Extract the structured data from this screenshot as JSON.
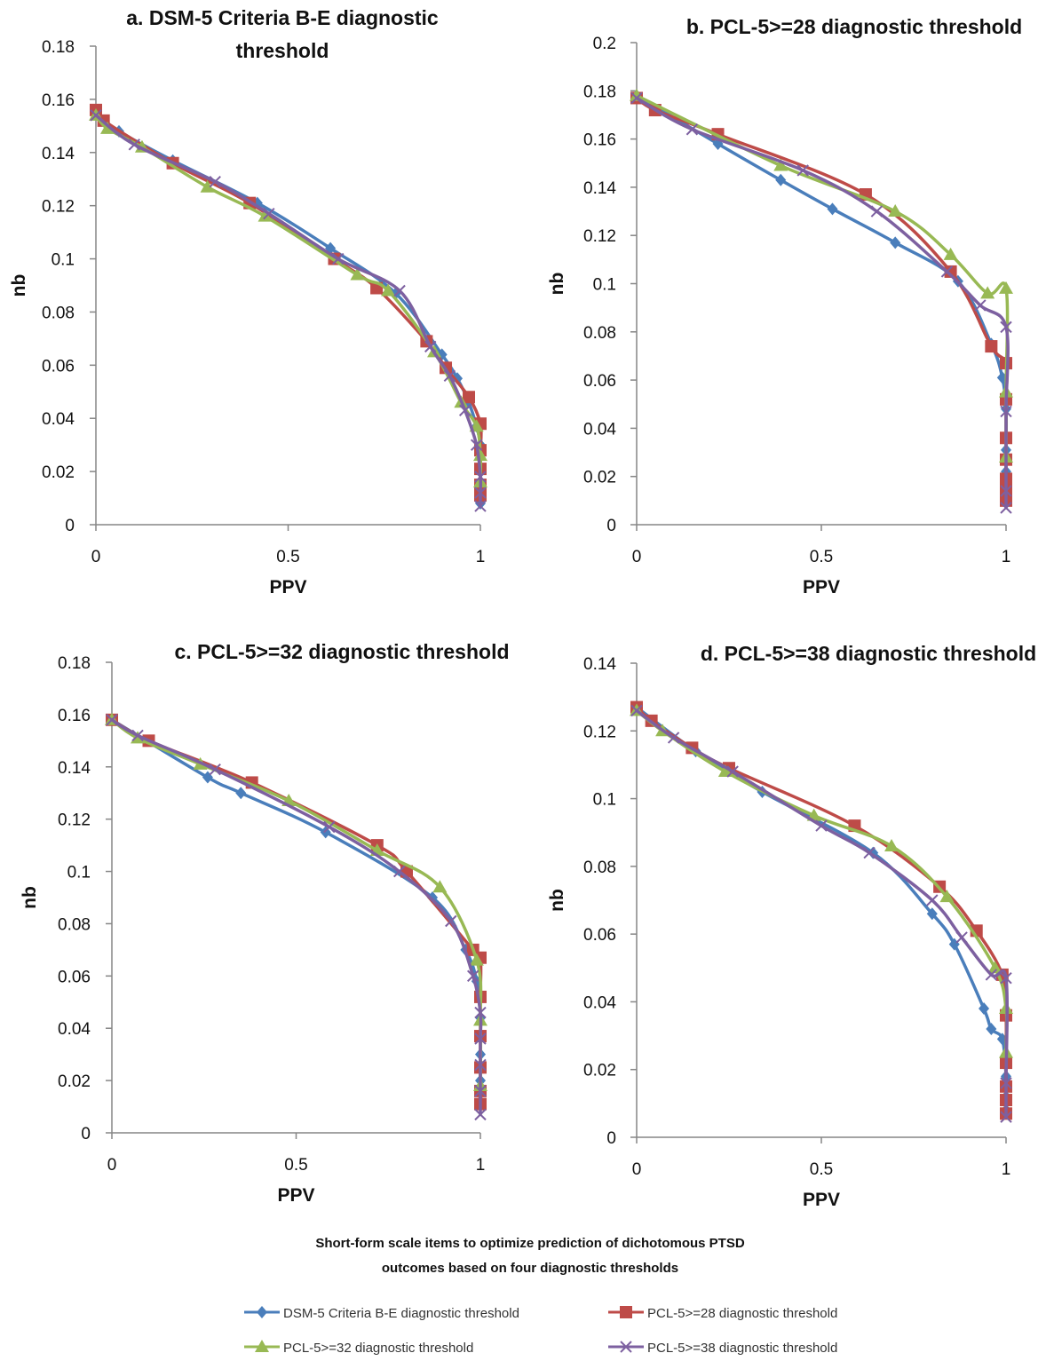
{
  "caption": {
    "line1": "Short-form scale items to optimize prediction of dichotomous PTSD",
    "line2": "outcomes based on four diagnostic thresholds"
  },
  "colors": {
    "series": [
      "#4a7ebb",
      "#be4b48",
      "#98b954",
      "#7d60a0"
    ],
    "axis": "#868686",
    "text": "#111111"
  },
  "legend": {
    "items": [
      "DSM-5 Criteria B-E diagnostic threshold",
      "PCL-5>=28 diagnostic threshold",
      "PCL-5>=32 diagnostic threshold",
      "PCL-5>=38 diagnostic threshold"
    ],
    "placement": "bottom"
  },
  "chart_data": [
    {
      "type": "line",
      "title_lines": [
        "a. DSM-5 Criteria B-E diagnostic",
        "threshold"
      ],
      "xlabel": "PPV",
      "ylabel": "nb",
      "xlim": [
        0,
        1
      ],
      "ylim": [
        0,
        0.18
      ],
      "xticks": [
        "0",
        "0.5",
        "1"
      ],
      "yticks": [
        "0",
        "0.02",
        "0.04",
        "0.06",
        "0.08",
        "0.1",
        "0.12",
        "0.14",
        "0.16",
        "0.18"
      ],
      "series": [
        {
          "name": "DSM-5 Criteria B-E diagnostic threshold",
          "x": [
            0,
            0.06,
            0.2,
            0.42,
            0.61,
            0.78,
            0.9,
            0.94,
            0.97,
            0.99,
            1,
            1,
            1,
            1
          ],
          "y": [
            0.155,
            0.148,
            0.137,
            0.121,
            0.104,
            0.087,
            0.064,
            0.055,
            0.046,
            0.037,
            0.03,
            0.02,
            0.013,
            0.008
          ]
        },
        {
          "name": "PCL-5>=28 diagnostic threshold",
          "x": [
            0,
            0.02,
            0.2,
            0.4,
            0.62,
            0.73,
            0.86,
            0.91,
            0.97,
            1,
            1,
            1,
            1,
            1
          ],
          "y": [
            0.156,
            0.152,
            0.136,
            0.121,
            0.1,
            0.089,
            0.069,
            0.059,
            0.048,
            0.038,
            0.028,
            0.021,
            0.015,
            0.011
          ]
        },
        {
          "name": "PCL-5>=32 diagnostic threshold",
          "x": [
            0,
            0.03,
            0.12,
            0.29,
            0.44,
            0.68,
            0.76,
            0.88,
            0.95,
            0.99,
            1,
            1
          ],
          "y": [
            0.154,
            0.149,
            0.142,
            0.127,
            0.116,
            0.094,
            0.088,
            0.065,
            0.046,
            0.037,
            0.026,
            0.016
          ]
        },
        {
          "name": "PCL-5>=38 diagnostic threshold",
          "x": [
            0,
            0.1,
            0.31,
            0.45,
            0.63,
            0.79,
            0.87,
            0.92,
            0.96,
            0.99,
            1,
            1,
            1
          ],
          "y": [
            0.154,
            0.143,
            0.129,
            0.117,
            0.1,
            0.088,
            0.067,
            0.056,
            0.043,
            0.03,
            0.018,
            0.012,
            0.007
          ]
        }
      ]
    },
    {
      "type": "line",
      "title_lines": [
        "b. PCL-5>=28 diagnostic threshold"
      ],
      "xlabel": "PPV",
      "ylabel": "nb",
      "xlim": [
        0,
        1
      ],
      "ylim": [
        0,
        0.2
      ],
      "xticks": [
        "0",
        "0.5",
        "1"
      ],
      "yticks": [
        "0",
        "0.02",
        "0.04",
        "0.06",
        "0.08",
        "0.1",
        "0.12",
        "0.14",
        "0.16",
        "0.18",
        "0.2"
      ],
      "series": [
        {
          "name": "DSM-5 Criteria B-E diagnostic threshold",
          "x": [
            0,
            0.22,
            0.39,
            0.53,
            0.7,
            0.87,
            0.96,
            0.99,
            1,
            1,
            1,
            1,
            1
          ],
          "y": [
            0.178,
            0.158,
            0.143,
            0.131,
            0.117,
            0.101,
            0.075,
            0.061,
            0.048,
            0.031,
            0.022,
            0.014,
            0.009
          ]
        },
        {
          "name": "PCL-5>=28 diagnostic threshold",
          "x": [
            0,
            0.05,
            0.22,
            0.62,
            0.85,
            0.96,
            1,
            1,
            1,
            1,
            1,
            1,
            1
          ],
          "y": [
            0.177,
            0.172,
            0.162,
            0.137,
            0.105,
            0.074,
            0.067,
            0.052,
            0.036,
            0.027,
            0.019,
            0.014,
            0.01
          ]
        },
        {
          "name": "PCL-5>=32 diagnostic threshold",
          "x": [
            0,
            0.39,
            0.7,
            0.85,
            0.95,
            1,
            1,
            1
          ],
          "y": [
            0.178,
            0.149,
            0.13,
            0.112,
            0.096,
            0.098,
            0.055,
            0.028
          ]
        },
        {
          "name": "PCL-5>=38 diagnostic threshold",
          "x": [
            0,
            0.15,
            0.45,
            0.65,
            0.84,
            0.93,
            1,
            1,
            1,
            1
          ],
          "y": [
            0.177,
            0.164,
            0.147,
            0.13,
            0.105,
            0.091,
            0.082,
            0.047,
            0.014,
            0.007
          ]
        }
      ]
    },
    {
      "type": "line",
      "title_lines": [
        "c. PCL-5>=32 diagnostic threshold"
      ],
      "xlabel": "PPV",
      "ylabel": "nb",
      "xlim": [
        0,
        1
      ],
      "ylim": [
        0,
        0.18
      ],
      "xticks": [
        "0",
        "0.5",
        "1"
      ],
      "yticks": [
        "0",
        "0.02",
        "0.04",
        "0.06",
        "0.08",
        "0.1",
        "0.12",
        "0.14",
        "0.16",
        "0.18"
      ],
      "series": [
        {
          "name": "DSM-5 Criteria B-E diagnostic threshold",
          "x": [
            0,
            0.26,
            0.35,
            0.58,
            0.87,
            0.96,
            0.99,
            1,
            1,
            1,
            1
          ],
          "y": [
            0.158,
            0.136,
            0.13,
            0.115,
            0.09,
            0.07,
            0.058,
            0.044,
            0.03,
            0.02,
            0.012
          ]
        },
        {
          "name": "PCL-5>=28 diagnostic threshold",
          "x": [
            0,
            0.1,
            0.38,
            0.72,
            0.8,
            0.98,
            1,
            1,
            1,
            1,
            1,
            1
          ],
          "y": [
            0.158,
            0.15,
            0.134,
            0.11,
            0.1,
            0.07,
            0.067,
            0.052,
            0.037,
            0.025,
            0.016,
            0.011
          ]
        },
        {
          "name": "PCL-5>=32 diagnostic threshold",
          "x": [
            0,
            0.07,
            0.24,
            0.48,
            0.72,
            0.89,
            0.99,
            1,
            1
          ],
          "y": [
            0.158,
            0.151,
            0.141,
            0.127,
            0.108,
            0.094,
            0.066,
            0.043,
            0.018
          ]
        },
        {
          "name": "PCL-5>=38 diagnostic threshold",
          "x": [
            0,
            0.07,
            0.28,
            0.59,
            0.78,
            0.92,
            0.98,
            1,
            1,
            1,
            1,
            1
          ],
          "y": [
            0.158,
            0.152,
            0.139,
            0.117,
            0.1,
            0.081,
            0.06,
            0.046,
            0.036,
            0.026,
            0.016,
            0.007
          ]
        }
      ]
    },
    {
      "type": "line",
      "title_lines": [
        "d. PCL-5>=38 diagnostic threshold"
      ],
      "xlabel": "PPV",
      "ylabel": "nb",
      "xlim": [
        0,
        1
      ],
      "ylim": [
        0,
        0.14
      ],
      "xticks": [
        "0",
        "0.5",
        "1"
      ],
      "yticks": [
        "0",
        "0.02",
        "0.04",
        "0.06",
        "0.08",
        "0.1",
        "0.12",
        "0.14"
      ],
      "series": [
        {
          "name": "DSM-5 Criteria B-E diagnostic threshold",
          "x": [
            0,
            0.16,
            0.34,
            0.64,
            0.8,
            0.86,
            0.94,
            0.96,
            0.99,
            1,
            1,
            1
          ],
          "y": [
            0.127,
            0.114,
            0.102,
            0.084,
            0.066,
            0.057,
            0.038,
            0.032,
            0.029,
            0.018,
            0.012,
            0.008
          ]
        },
        {
          "name": "PCL-5>=28 diagnostic threshold",
          "x": [
            0,
            0.04,
            0.15,
            0.25,
            0.59,
            0.82,
            0.92,
            0.99,
            1,
            1,
            1,
            1,
            1
          ],
          "y": [
            0.127,
            0.123,
            0.115,
            0.109,
            0.092,
            0.074,
            0.061,
            0.048,
            0.036,
            0.022,
            0.015,
            0.011,
            0.007
          ]
        },
        {
          "name": "PCL-5>=32 diagnostic threshold",
          "x": [
            0,
            0.07,
            0.24,
            0.48,
            0.69,
            0.84,
            0.97,
            1,
            1
          ],
          "y": [
            0.126,
            0.12,
            0.108,
            0.095,
            0.086,
            0.071,
            0.05,
            0.038,
            0.025
          ]
        },
        {
          "name": "PCL-5>=38 diagnostic threshold",
          "x": [
            0,
            0.1,
            0.26,
            0.5,
            0.63,
            0.8,
            0.88,
            0.96,
            1,
            1,
            1
          ],
          "y": [
            0.126,
            0.118,
            0.108,
            0.092,
            0.084,
            0.07,
            0.059,
            0.048,
            0.047,
            0.016,
            0.006
          ]
        }
      ]
    }
  ]
}
